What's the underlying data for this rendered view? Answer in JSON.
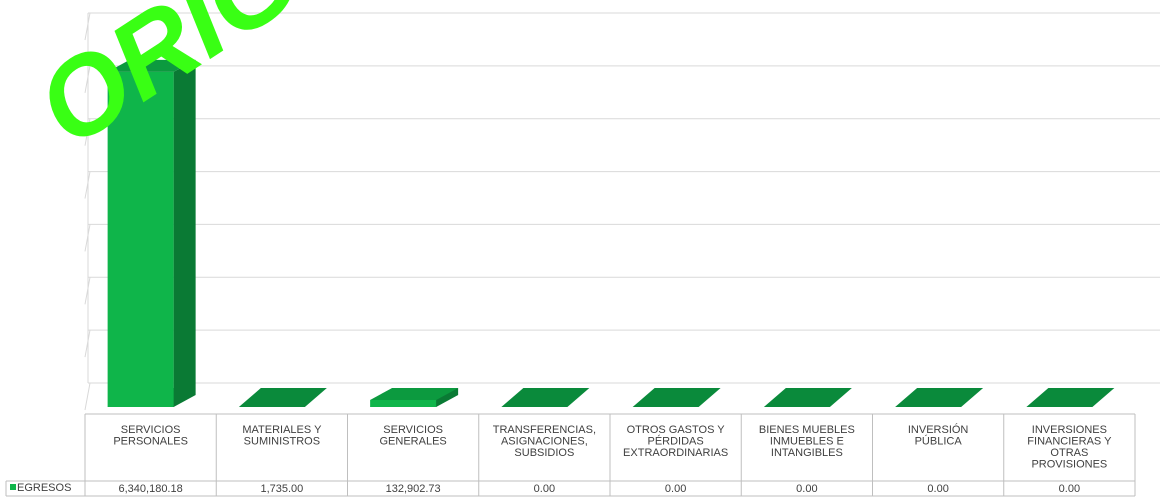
{
  "chart_data": {
    "type": "bar",
    "style": "3d-column",
    "categories": [
      "SERVICIOS PERSONALES",
      "MATERIALES Y SUMINISTROS",
      "SERVICIOS GENERALES",
      "TRANSFERENCIAS, ASIGNACIONES, SUBSIDIOS",
      "OTROS GASTOS Y PÉRDIDAS EXTRAORDINARIAS",
      "BIENES MUEBLES INMUEBLES E INTANGIBLES",
      "INVERSIÓN PÚBLICA",
      "INVERSIONES FINANCIERAS Y OTRAS PROVISIONES"
    ],
    "category_lines": [
      [
        "SERVICIOS",
        "PERSONALES"
      ],
      [
        "MATERIALES Y",
        "SUMINISTROS"
      ],
      [
        "SERVICIOS",
        "GENERALES"
      ],
      [
        "TRANSFERENCIAS,",
        "ASIGNACIONES,",
        "SUBSIDIOS"
      ],
      [
        "OTROS GASTOS Y",
        "PÉRDIDAS",
        "EXTRAORDINARIAS"
      ],
      [
        "BIENES MUEBLES",
        "INMUEBLES E",
        "INTANGIBLES"
      ],
      [
        "INVERSIÓN",
        "PÚBLICA"
      ],
      [
        "INVERSIONES",
        "FINANCIERAS Y",
        "OTRAS",
        "PROVISIONES"
      ]
    ],
    "series": [
      {
        "name": "EGRESOS",
        "values": [
          6340180.18,
          1735.0,
          132902.73,
          0.0,
          0.0,
          0.0,
          0.0,
          0.0
        ],
        "labels": [
          "6,340,180.18",
          "1,735.00",
          "132,902.73",
          "0.00",
          "0.00",
          "0.00",
          "0.00",
          "0.00"
        ],
        "color": "#0fb54a"
      }
    ],
    "ylim": [
      0,
      7000000
    ],
    "gridlines": true,
    "y_tick_labels_visible": false,
    "legend": "data-table",
    "data_table": true,
    "watermark_text": "ORIGINAL",
    "colors": {
      "bar_front": "#0fb54a",
      "bar_side": "#0a7a34",
      "bar_top": "#0c9a3f",
      "floor": "#0a8a3b",
      "watermark": "#39ff14",
      "grid": "#d9d9d9",
      "table_border": "#bfbfbf"
    }
  }
}
